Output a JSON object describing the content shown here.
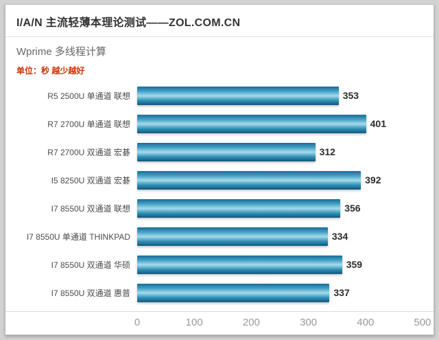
{
  "header": {
    "title": "I/A/N 主流轻薄本理论测试——ZOL.COM.CN",
    "subtitle": "Wprime 多线程计算",
    "note": "单位：秒 越少越好",
    "note_color": "#cc3300"
  },
  "chart_data": {
    "type": "bar",
    "orientation": "horizontal",
    "title": "Wprime 多线程计算",
    "unit": "秒",
    "better": "越少越好",
    "categories": [
      "R5 2500U 单通道 联想",
      "R7 2700U 单通道 联想",
      "R7 2700U 双通道 宏碁",
      "I5 8250U 双通道 宏碁",
      "I7 8550U 双通道 联想",
      "I7 8550U 单通道 THINKPAD",
      "I7 8550U 双通道 华硕",
      "I7 8550U 双通道 惠普"
    ],
    "values": [
      353,
      401,
      312,
      392,
      356,
      334,
      359,
      337
    ],
    "xlim": [
      0,
      500
    ],
    "xticks": [
      0,
      100,
      200,
      300,
      400,
      500
    ],
    "grid": false,
    "legend": false,
    "bar_gradient": [
      "#1a6d96",
      "#3f9dc3",
      "#a6dbec",
      "#2e8fb5",
      "#14567c"
    ]
  }
}
